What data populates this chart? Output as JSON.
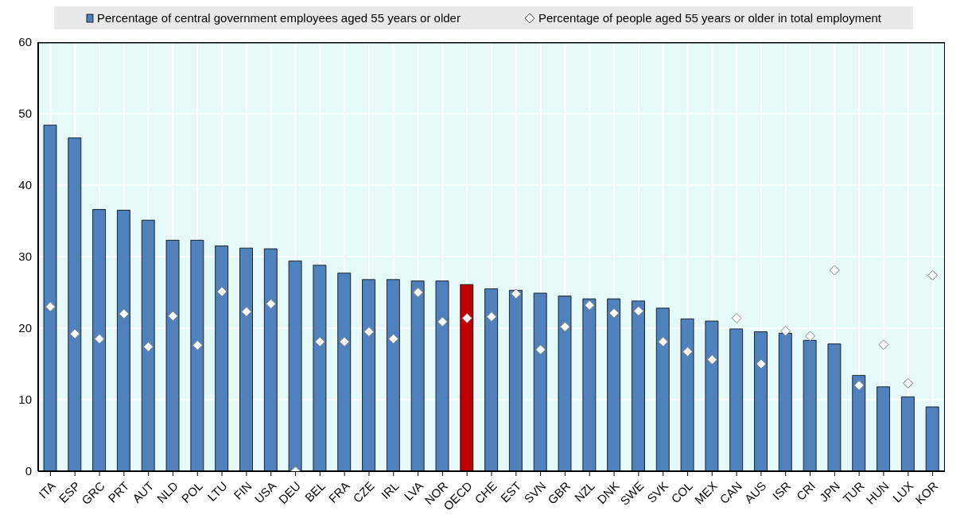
{
  "chart_data": {
    "type": "bar",
    "categories": [
      "ITA",
      "ESP",
      "GRC",
      "PRT",
      "AUT",
      "NLD",
      "POL",
      "LTU",
      "FIN",
      "USA",
      "DEU",
      "BEL",
      "FRA",
      "CZE",
      "IRL",
      "LVA",
      "NOR",
      "OECD",
      "CHE",
      "EST",
      "SVN",
      "GBR",
      "NZL",
      "DNK",
      "SWE",
      "SVK",
      "COL",
      "MEX",
      "CAN",
      "AUS",
      "ISR",
      "CRI",
      "JPN",
      "TUR",
      "HUN",
      "LUX",
      "KOR"
    ],
    "series": [
      {
        "name": "Percentage of central government employees aged 55 years or older",
        "color": "#4f81bd",
        "colors": [
          "#4f81bd",
          "#4f81bd",
          "#4f81bd",
          "#4f81bd",
          "#4f81bd",
          "#4f81bd",
          "#4f81bd",
          "#4f81bd",
          "#4f81bd",
          "#4f81bd",
          "#4f81bd",
          "#4f81bd",
          "#4f81bd",
          "#4f81bd",
          "#4f81bd",
          "#4f81bd",
          "#4f81bd",
          "#c00000",
          "#4f81bd",
          "#4f81bd",
          "#4f81bd",
          "#4f81bd",
          "#4f81bd",
          "#4f81bd",
          "#4f81bd",
          "#4f81bd",
          "#4f81bd",
          "#4f81bd",
          "#4f81bd",
          "#4f81bd",
          "#4f81bd",
          "#4f81bd",
          "#4f81bd",
          "#4f81bd",
          "#4f81bd",
          "#4f81bd",
          "#4f81bd"
        ],
        "values": [
          48.4,
          46.6,
          36.6,
          36.5,
          35.1,
          32.3,
          32.3,
          31.5,
          31.2,
          31.1,
          29.4,
          28.8,
          27.7,
          26.8,
          26.8,
          26.6,
          26.6,
          26.1,
          25.5,
          25.3,
          24.9,
          24.5,
          24.1,
          24.1,
          23.8,
          22.8,
          21.3,
          21.0,
          19.9,
          19.5,
          19.3,
          18.3,
          17.8,
          13.4,
          11.8,
          10.4,
          9.0
        ]
      },
      {
        "name": "Percentage of people aged 55 years or older in total employment",
        "type": "scatter",
        "marker": "diamond",
        "color": "#ffffff",
        "values": [
          23.0,
          19.2,
          18.5,
          22.0,
          17.4,
          21.7,
          17.6,
          25.1,
          22.3,
          23.4,
          0,
          18.1,
          18.1,
          19.5,
          18.5,
          25.0,
          20.9,
          21.4,
          21.6,
          24.8,
          17.0,
          20.2,
          23.2,
          22.1,
          22.4,
          18.1,
          16.7,
          15.6,
          21.4,
          15.0,
          19.6,
          18.9,
          28.1,
          12.0,
          17.7,
          12.3,
          27.4
        ]
      }
    ],
    "ylim": [
      0,
      60
    ],
    "yticks": [
      0,
      10,
      20,
      30,
      40,
      50,
      60
    ],
    "grid": true,
    "legend": "top"
  }
}
